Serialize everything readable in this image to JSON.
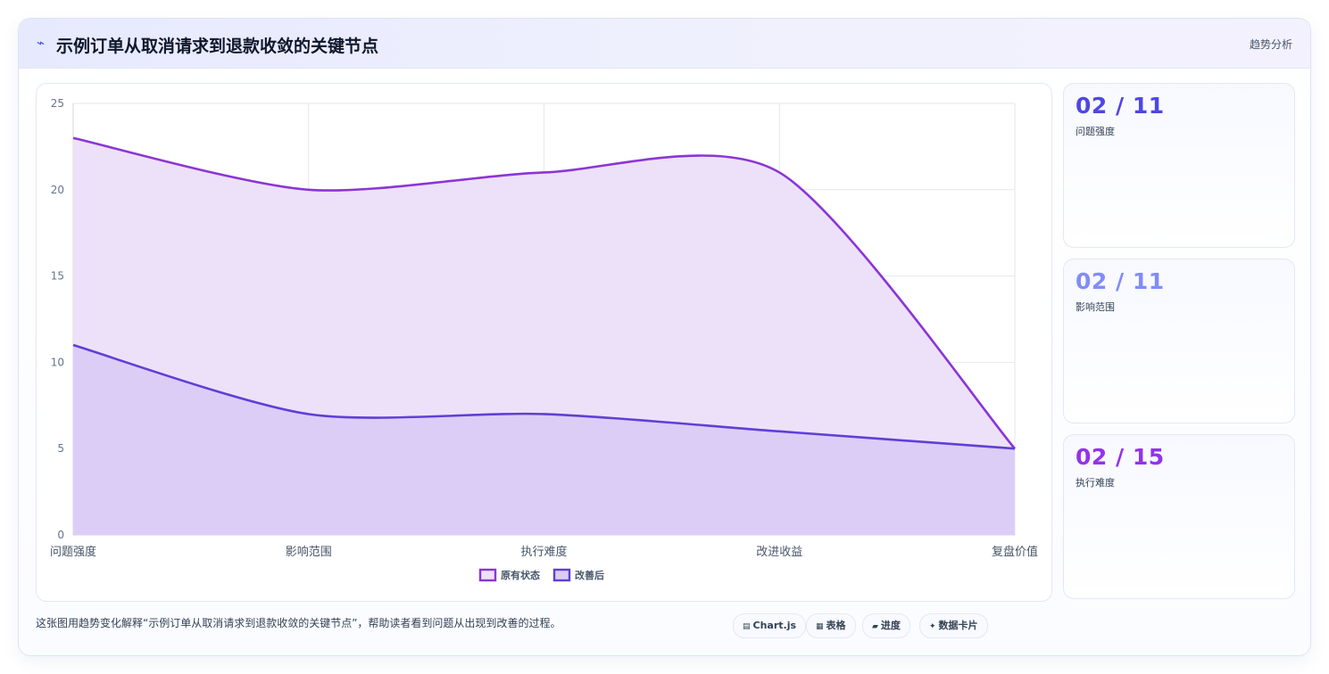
{
  "header": {
    "icon": "trend-line-icon",
    "title": "示例订单从取消请求到退款收敛的关键节点",
    "link_label": "趋势分析"
  },
  "kpis": [
    {
      "value": "02 / 11",
      "label": "问题强度",
      "color": "#4f46e5"
    },
    {
      "value": "02 / 11",
      "label": "影响范围",
      "color": "#818cf8"
    },
    {
      "value": "02 / 15",
      "label": "执行难度",
      "color": "#9333ea"
    }
  ],
  "footnote": "这张图用趋势变化解释“示例订单从取消请求到退款收敛的关键节点”，帮助读者看到问题从出现到改善的过程。",
  "tags": [
    {
      "icon": "chart-icon",
      "glyph": "▤",
      "label": "Chart.js"
    },
    {
      "icon": "table-icon",
      "glyph": "▦",
      "label": "表格"
    },
    {
      "icon": "progress-icon",
      "glyph": "▰",
      "label": "进度"
    },
    {
      "icon": "card-icon",
      "glyph": "✦",
      "label": "数据卡片"
    }
  ],
  "chart_data": {
    "type": "area",
    "categories": [
      "问题强度",
      "影响范围",
      "执行难度",
      "改进收益",
      "复盘价值"
    ],
    "series": [
      {
        "name": "原有状态",
        "values": [
          23,
          20,
          21,
          21,
          5
        ],
        "color": "#8b35d6",
        "fill": "#ede1f9"
      },
      {
        "name": "改善后",
        "values": [
          11,
          7,
          7,
          6,
          5
        ],
        "color": "#5d40d6",
        "fill": "#dccdf7"
      }
    ],
    "ylim": [
      0,
      25
    ],
    "yticks": [
      0,
      5,
      10,
      15,
      20,
      25
    ],
    "grid": true,
    "legend": "bottom"
  }
}
